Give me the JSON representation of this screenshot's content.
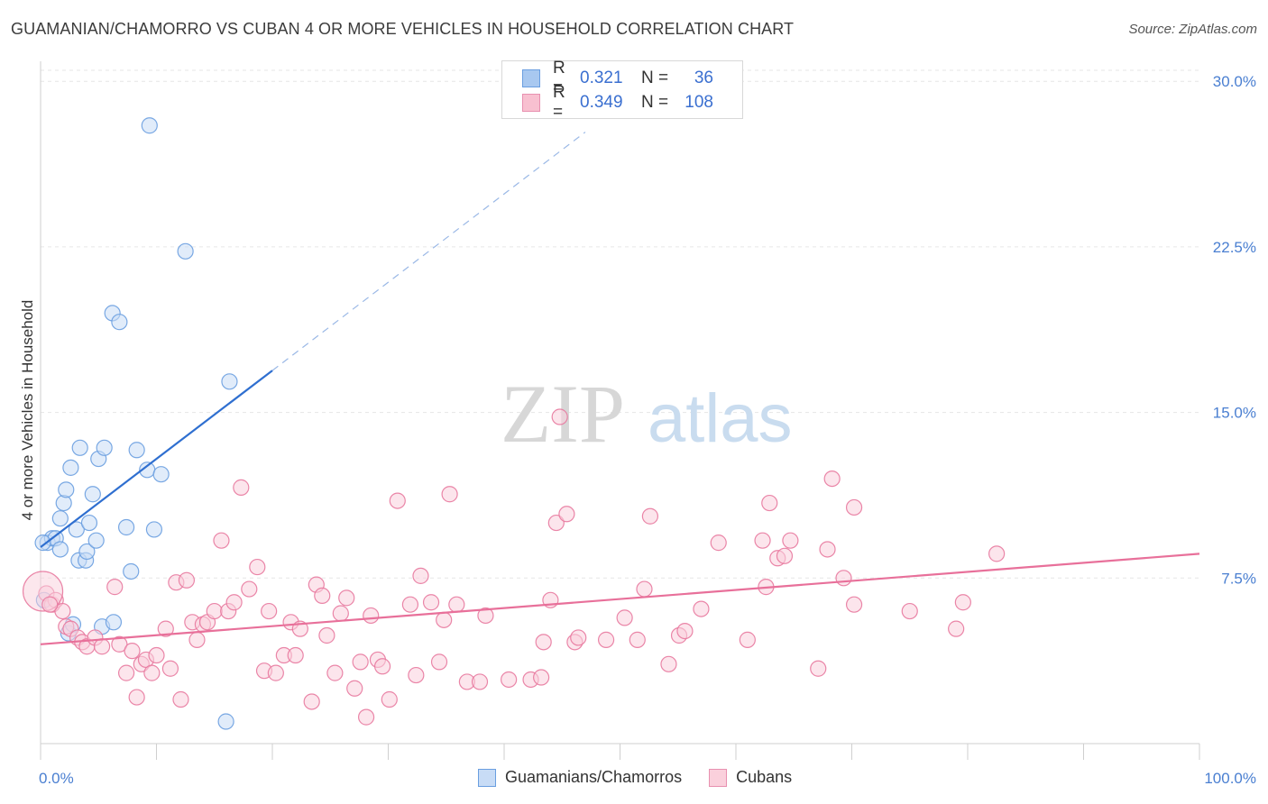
{
  "title": "GUAMANIAN/CHAMORRO VS CUBAN 4 OR MORE VEHICLES IN HOUSEHOLD CORRELATION CHART",
  "source": "Source: ZipAtlas.com",
  "watermark": {
    "zip": "ZIP",
    "atlas": "atlas"
  },
  "legend": {
    "rows": [
      {
        "r_label": "R =",
        "r_value": "0.321",
        "n_label": "N =",
        "n_value": "36",
        "color": "#a8c8f0",
        "border": "#6a9ee0"
      },
      {
        "r_label": "R =",
        "r_value": "0.349",
        "n_label": "N =",
        "n_value": "108",
        "color": "#f8c0d0",
        "border": "#e890b0"
      }
    ]
  },
  "bottom_legend": [
    {
      "label": "Guamanians/Chamorros",
      "color": "#c8dcf6",
      "border": "#6a9ee0"
    },
    {
      "label": "Cubans",
      "color": "#fad0dc",
      "border": "#e890b0"
    }
  ],
  "chart_data": {
    "type": "scatter",
    "title": "GUAMANIAN/CHAMORRO VS CUBAN 4 OR MORE VEHICLES IN HOUSEHOLD CORRELATION CHART",
    "xlabel": "",
    "ylabel": "4 or more Vehicles in Household",
    "xlim": [
      0,
      100
    ],
    "ylim": [
      0,
      30.5
    ],
    "x_tick_labels": [
      "0.0%",
      "100.0%"
    ],
    "y_ticks": [
      7.5,
      15.0,
      22.5,
      30.0
    ],
    "y_tick_labels": [
      "7.5%",
      "15.0%",
      "22.5%",
      "30.0%"
    ],
    "grid": true,
    "series": [
      {
        "name": "Guamanians/Chamorros",
        "color": "#6a9ee0",
        "fill": "#c8dcf6",
        "points": [
          [
            0.3,
            6.5
          ],
          [
            0.6,
            9.1
          ],
          [
            1.0,
            9.3
          ],
          [
            1.3,
            9.3
          ],
          [
            1.7,
            10.2
          ],
          [
            1.7,
            8.8
          ],
          [
            2.0,
            10.9
          ],
          [
            2.2,
            11.5
          ],
          [
            2.4,
            5.0
          ],
          [
            2.6,
            12.5
          ],
          [
            2.8,
            5.4
          ],
          [
            3.1,
            9.7
          ],
          [
            3.3,
            8.3
          ],
          [
            3.4,
            13.4
          ],
          [
            3.9,
            8.3
          ],
          [
            4.0,
            8.7
          ],
          [
            4.2,
            10.0
          ],
          [
            4.5,
            11.3
          ],
          [
            4.8,
            9.2
          ],
          [
            5.0,
            12.9
          ],
          [
            5.3,
            5.3
          ],
          [
            5.5,
            13.4
          ],
          [
            6.3,
            5.5
          ],
          [
            6.2,
            19.5
          ],
          [
            6.8,
            19.1
          ],
          [
            7.4,
            9.8
          ],
          [
            7.8,
            7.8
          ],
          [
            8.3,
            13.3
          ],
          [
            9.2,
            12.4
          ],
          [
            9.8,
            9.7
          ],
          [
            10.4,
            12.2
          ],
          [
            9.4,
            28.0
          ],
          [
            12.5,
            22.3
          ],
          [
            16.0,
            1.0
          ],
          [
            16.3,
            16.4
          ],
          [
            0.2,
            9.1
          ]
        ],
        "trend": {
          "x0": 0,
          "y0": 8.9,
          "x1": 20,
          "y1": 16.9,
          "dash_x1": 47,
          "dash_y1": 27.7
        }
      },
      {
        "name": "Cubans",
        "color": "#e8799e",
        "fill": "#fad0dc",
        "points": [
          [
            0.5,
            6.8
          ],
          [
            1.0,
            6.3
          ],
          [
            1.3,
            6.5
          ],
          [
            1.9,
            6.0
          ],
          [
            2.2,
            5.3
          ],
          [
            2.6,
            5.2
          ],
          [
            3.2,
            4.8
          ],
          [
            3.6,
            4.6
          ],
          [
            4.0,
            4.4
          ],
          [
            4.7,
            4.8
          ],
          [
            5.3,
            4.4
          ],
          [
            6.4,
            7.1
          ],
          [
            6.8,
            4.5
          ],
          [
            7.4,
            3.2
          ],
          [
            7.9,
            4.2
          ],
          [
            8.3,
            2.1
          ],
          [
            8.7,
            3.6
          ],
          [
            9.1,
            3.8
          ],
          [
            9.6,
            3.2
          ],
          [
            10.0,
            4.0
          ],
          [
            10.8,
            5.2
          ],
          [
            11.2,
            3.4
          ],
          [
            11.7,
            7.3
          ],
          [
            12.1,
            2.0
          ],
          [
            12.6,
            7.4
          ],
          [
            13.1,
            5.5
          ],
          [
            13.5,
            4.7
          ],
          [
            14.0,
            5.4
          ],
          [
            14.4,
            5.5
          ],
          [
            15.0,
            6.0
          ],
          [
            15.6,
            9.2
          ],
          [
            16.2,
            6.0
          ],
          [
            16.7,
            6.4
          ],
          [
            17.3,
            11.6
          ],
          [
            18.0,
            7.0
          ],
          [
            18.7,
            8.0
          ],
          [
            19.3,
            3.3
          ],
          [
            19.7,
            6.0
          ],
          [
            20.3,
            3.2
          ],
          [
            21.0,
            4.0
          ],
          [
            21.6,
            5.5
          ],
          [
            22.0,
            4.0
          ],
          [
            22.4,
            5.2
          ],
          [
            23.4,
            1.9
          ],
          [
            23.8,
            7.2
          ],
          [
            24.3,
            6.7
          ],
          [
            24.7,
            4.9
          ],
          [
            25.4,
            3.2
          ],
          [
            25.9,
            5.9
          ],
          [
            26.4,
            6.6
          ],
          [
            27.1,
            2.5
          ],
          [
            27.6,
            3.7
          ],
          [
            28.1,
            1.2
          ],
          [
            28.5,
            5.8
          ],
          [
            29.1,
            3.8
          ],
          [
            29.5,
            3.5
          ],
          [
            30.1,
            2.0
          ],
          [
            30.8,
            11.0
          ],
          [
            31.9,
            6.3
          ],
          [
            32.4,
            3.1
          ],
          [
            32.8,
            7.6
          ],
          [
            33.7,
            6.4
          ],
          [
            34.4,
            3.7
          ],
          [
            34.8,
            5.6
          ],
          [
            35.3,
            11.3
          ],
          [
            35.9,
            6.3
          ],
          [
            36.8,
            2.8
          ],
          [
            37.9,
            2.8
          ],
          [
            38.4,
            5.8
          ],
          [
            40.4,
            2.9
          ],
          [
            42.3,
            2.9
          ],
          [
            43.2,
            3.0
          ],
          [
            43.4,
            4.6
          ],
          [
            44.0,
            6.5
          ],
          [
            44.5,
            10.0
          ],
          [
            44.8,
            14.8
          ],
          [
            45.4,
            10.4
          ],
          [
            46.1,
            4.6
          ],
          [
            46.4,
            4.8
          ],
          [
            48.8,
            4.7
          ],
          [
            50.4,
            5.7
          ],
          [
            51.5,
            4.7
          ],
          [
            52.1,
            7.0
          ],
          [
            52.6,
            10.3
          ],
          [
            54.2,
            3.6
          ],
          [
            55.1,
            4.9
          ],
          [
            55.6,
            5.1
          ],
          [
            57.0,
            6.1
          ],
          [
            58.5,
            9.1
          ],
          [
            61.0,
            4.7
          ],
          [
            62.3,
            9.2
          ],
          [
            62.6,
            7.1
          ],
          [
            62.9,
            10.9
          ],
          [
            63.6,
            8.4
          ],
          [
            64.2,
            8.5
          ],
          [
            64.7,
            9.2
          ],
          [
            67.1,
            3.4
          ],
          [
            67.9,
            8.8
          ],
          [
            68.3,
            12.0
          ],
          [
            69.3,
            7.5
          ],
          [
            70.2,
            6.3
          ],
          [
            70.2,
            10.7
          ],
          [
            75.0,
            6.0
          ],
          [
            79.0,
            5.2
          ],
          [
            79.6,
            6.4
          ],
          [
            82.5,
            8.6
          ],
          [
            0.2,
            6.9
          ],
          [
            0.8,
            6.3
          ]
        ],
        "trend": {
          "x0": 0,
          "y0": 4.5,
          "x1": 100,
          "y1": 8.6
        }
      }
    ]
  }
}
